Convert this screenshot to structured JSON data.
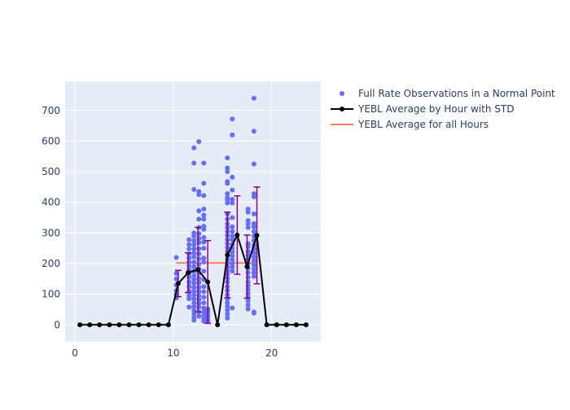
{
  "chart_data": {
    "type": "scatter",
    "title": "",
    "xlabel": "",
    "ylabel": "",
    "xlim": [
      -1,
      25
    ],
    "ylim": [
      -55,
      795
    ],
    "x_ticks": [
      0,
      10,
      20
    ],
    "y_ticks": [
      0,
      100,
      200,
      300,
      400,
      500,
      600,
      700
    ],
    "grid": true,
    "legend_position": "top-right",
    "colors": {
      "scatter": "#636efa",
      "avg_line": "#000000",
      "error_bar": "#8b008b",
      "overall_avg": "#ff7f50",
      "plot_bg": "#e5ecf6",
      "grid": "#ffffff"
    },
    "legend": [
      {
        "key": "scatter",
        "label": "Full Rate Observations in a Normal Point"
      },
      {
        "key": "line",
        "label": "YEBL Average by Hour with STD"
      },
      {
        "key": "overall",
        "label": "YEBL Average for all Hours"
      }
    ],
    "series": [
      {
        "name": "Full Rate Observations in a Normal Point",
        "kind": "scatter",
        "points": [
          [
            10.3,
            220
          ],
          [
            10.3,
            168
          ],
          [
            10.3,
            150
          ],
          [
            10.3,
            130
          ],
          [
            10.3,
            112
          ],
          [
            10.3,
            98
          ],
          [
            10.3,
            88
          ],
          [
            11.6,
            278
          ],
          [
            11.6,
            262
          ],
          [
            11.6,
            248
          ],
          [
            11.6,
            232
          ],
          [
            11.6,
            218
          ],
          [
            11.6,
            205
          ],
          [
            11.6,
            192
          ],
          [
            11.6,
            180
          ],
          [
            11.6,
            168
          ],
          [
            11.6,
            155
          ],
          [
            11.6,
            140
          ],
          [
            11.6,
            125
          ],
          [
            11.6,
            110
          ],
          [
            11.6,
            95
          ],
          [
            11.6,
            85
          ],
          [
            11.6,
            58
          ],
          [
            12.1,
            578
          ],
          [
            12.1,
            528
          ],
          [
            12.1,
            442
          ],
          [
            12.1,
            300
          ],
          [
            12.1,
            290
          ],
          [
            12.1,
            275
          ],
          [
            12.1,
            262
          ],
          [
            12.1,
            248
          ],
          [
            12.1,
            235
          ],
          [
            12.1,
            222
          ],
          [
            12.1,
            205
          ],
          [
            12.1,
            190
          ],
          [
            12.1,
            175
          ],
          [
            12.1,
            160
          ],
          [
            12.1,
            148
          ],
          [
            12.1,
            135
          ],
          [
            12.1,
            122
          ],
          [
            12.1,
            110
          ],
          [
            12.1,
            98
          ],
          [
            12.1,
            85
          ],
          [
            12.1,
            72
          ],
          [
            12.1,
            60
          ],
          [
            12.1,
            48
          ],
          [
            12.1,
            35
          ],
          [
            12.1,
            22
          ],
          [
            12.1,
            15
          ],
          [
            12.6,
            598
          ],
          [
            12.6,
            435
          ],
          [
            12.6,
            425
          ],
          [
            12.6,
            372
          ],
          [
            12.6,
            345
          ],
          [
            12.6,
            318
          ],
          [
            12.6,
            298
          ],
          [
            12.6,
            282
          ],
          [
            12.6,
            268
          ],
          [
            12.6,
            248
          ],
          [
            12.6,
            232
          ],
          [
            12.6,
            215
          ],
          [
            12.6,
            198
          ],
          [
            12.6,
            182
          ],
          [
            12.6,
            168
          ],
          [
            12.6,
            152
          ],
          [
            12.6,
            138
          ],
          [
            12.6,
            122
          ],
          [
            12.6,
            108
          ],
          [
            12.6,
            95
          ],
          [
            12.6,
            82
          ],
          [
            12.6,
            70
          ],
          [
            12.6,
            58
          ],
          [
            12.6,
            42
          ],
          [
            12.6,
            28
          ],
          [
            13.1,
            528
          ],
          [
            13.1,
            462
          ],
          [
            13.1,
            422
          ],
          [
            13.1,
            378
          ],
          [
            13.1,
            358
          ],
          [
            13.1,
            345
          ],
          [
            13.1,
            322
          ],
          [
            13.1,
            312
          ],
          [
            13.1,
            285
          ],
          [
            13.1,
            270
          ],
          [
            13.1,
            250
          ],
          [
            13.1,
            218
          ],
          [
            13.1,
            205
          ],
          [
            13.1,
            175
          ],
          [
            13.1,
            148
          ],
          [
            13.1,
            125
          ],
          [
            13.1,
            108
          ],
          [
            13.1,
            90
          ],
          [
            13.1,
            72
          ],
          [
            13.1,
            55
          ],
          [
            13.1,
            42
          ],
          [
            13.1,
            30
          ],
          [
            13.1,
            20
          ],
          [
            13.1,
            12
          ],
          [
            13.5,
            52
          ],
          [
            13.5,
            45
          ],
          [
            13.5,
            38
          ],
          [
            13.5,
            30
          ],
          [
            13.5,
            22
          ],
          [
            13.5,
            15
          ],
          [
            13.5,
            10
          ],
          [
            15.5,
            545
          ],
          [
            15.5,
            512
          ],
          [
            15.5,
            500
          ],
          [
            15.5,
            468
          ],
          [
            15.5,
            462
          ],
          [
            15.5,
            428
          ],
          [
            15.5,
            415
          ],
          [
            15.5,
            408
          ],
          [
            15.5,
            398
          ],
          [
            15.5,
            362
          ],
          [
            15.5,
            345
          ],
          [
            15.5,
            330
          ],
          [
            15.5,
            318
          ],
          [
            15.5,
            305
          ],
          [
            15.5,
            292
          ],
          [
            15.5,
            278
          ],
          [
            15.5,
            265
          ],
          [
            15.5,
            252
          ],
          [
            15.5,
            240
          ],
          [
            15.5,
            228
          ],
          [
            15.5,
            215
          ],
          [
            15.5,
            202
          ],
          [
            15.5,
            190
          ],
          [
            15.5,
            178
          ],
          [
            15.5,
            165
          ],
          [
            15.5,
            152
          ],
          [
            15.5,
            140
          ],
          [
            15.5,
            125
          ],
          [
            15.5,
            112
          ],
          [
            15.5,
            98
          ],
          [
            15.5,
            85
          ],
          [
            15.5,
            72
          ],
          [
            15.5,
            60
          ],
          [
            15.5,
            48
          ],
          [
            15.5,
            35
          ],
          [
            15.5,
            22
          ],
          [
            16.0,
            672
          ],
          [
            16.0,
            620
          ],
          [
            16.0,
            482
          ],
          [
            16.0,
            440
          ],
          [
            16.0,
            410
          ],
          [
            16.0,
            398
          ],
          [
            16.0,
            350
          ],
          [
            16.0,
            320
          ],
          [
            16.0,
            305
          ],
          [
            16.0,
            290
          ],
          [
            16.0,
            278
          ],
          [
            16.0,
            262
          ],
          [
            16.0,
            250
          ],
          [
            16.0,
            238
          ],
          [
            16.0,
            225
          ],
          [
            16.0,
            212
          ],
          [
            16.0,
            200
          ],
          [
            16.0,
            188
          ],
          [
            16.0,
            175
          ],
          [
            16.0,
            55
          ],
          [
            17.6,
            378
          ],
          [
            17.6,
            368
          ],
          [
            17.6,
            340
          ],
          [
            17.6,
            330
          ],
          [
            17.6,
            318
          ],
          [
            17.6,
            265
          ],
          [
            17.6,
            255
          ],
          [
            17.6,
            240
          ],
          [
            17.6,
            228
          ],
          [
            17.6,
            215
          ],
          [
            17.6,
            200
          ],
          [
            17.6,
            185
          ],
          [
            17.6,
            170
          ],
          [
            17.6,
            155
          ],
          [
            17.6,
            140
          ],
          [
            17.6,
            128
          ],
          [
            17.6,
            115
          ],
          [
            17.6,
            102
          ],
          [
            17.6,
            90
          ],
          [
            17.6,
            78
          ],
          [
            17.6,
            65
          ],
          [
            17.6,
            52
          ],
          [
            18.2,
            740
          ],
          [
            18.2,
            632
          ],
          [
            18.2,
            525
          ],
          [
            18.2,
            428
          ],
          [
            18.2,
            418
          ],
          [
            18.2,
            362
          ],
          [
            18.2,
            330
          ],
          [
            18.2,
            320
          ],
          [
            18.2,
            305
          ],
          [
            18.2,
            290
          ],
          [
            18.2,
            275
          ],
          [
            18.2,
            260
          ],
          [
            18.2,
            248
          ],
          [
            18.2,
            235
          ],
          [
            18.2,
            222
          ],
          [
            18.2,
            210
          ],
          [
            18.2,
            195
          ],
          [
            18.2,
            182
          ],
          [
            18.2,
            170
          ],
          [
            18.2,
            158
          ],
          [
            18.2,
            42
          ],
          [
            18.2,
            38
          ]
        ]
      },
      {
        "name": "YEBL Average by Hour with STD",
        "kind": "line",
        "x": [
          0.5,
          1.5,
          2.5,
          3.5,
          4.5,
          5.5,
          6.5,
          7.5,
          8.5,
          9.5,
          10.5,
          11.5,
          12.5,
          13.5,
          14.5,
          15.5,
          16.5,
          17.5,
          18.5,
          19.5,
          20.5,
          21.5,
          22.5,
          23.5
        ],
        "y": [
          0,
          0,
          0,
          0,
          0,
          0,
          0,
          0,
          0,
          0,
          135,
          170,
          180,
          140,
          0,
          228,
          293,
          190,
          292,
          0,
          0,
          0,
          0,
          0
        ],
        "std": [
          0,
          0,
          0,
          0,
          0,
          0,
          0,
          0,
          0,
          0,
          43,
          65,
          138,
          135,
          0,
          140,
          128,
          103,
          158,
          0,
          0,
          0,
          0,
          0
        ]
      },
      {
        "name": "YEBL Average for all Hours",
        "kind": "hline",
        "x_range": [
          10.3,
          18.5
        ],
        "y": 202
      }
    ]
  }
}
